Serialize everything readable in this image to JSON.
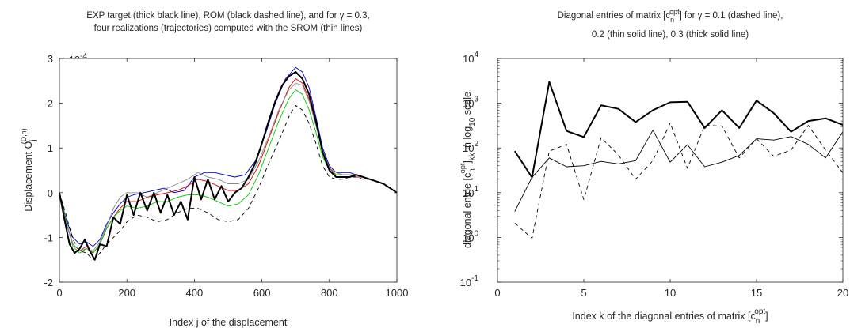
{
  "chart_data": [
    {
      "type": "line",
      "title_lines": [
        "EXP target (thick black line), ROM (black dashed line), and for γ = 0.3,",
        "four realizations (trajectories) computed with  the SROM (thin lines)"
      ],
      "xlabel": "Index j of the displacement",
      "ylabel_main": "Displacement O",
      "ylabel_sub": "j",
      "ylabel_sup": "(D,n)",
      "y_exponent_label": "×10",
      "y_exponent_value": "-4",
      "xlim": [
        0,
        1000
      ],
      "ylim": [
        -2,
        3
      ],
      "xticks": [
        "0",
        "200",
        "400",
        "600",
        "800",
        "1000"
      ],
      "yticks": [
        "-2",
        "-1",
        "0",
        "1",
        "2",
        "3"
      ],
      "series": [
        {
          "style": "thick",
          "color": "#000000",
          "x": [
            0,
            15,
            30,
            45,
            60,
            75,
            90,
            105,
            120,
            140,
            160,
            180,
            200,
            220,
            240,
            260,
            280,
            300,
            320,
            340,
            360,
            380,
            400,
            420,
            440,
            460,
            480,
            500,
            520,
            540,
            560,
            580,
            600,
            620,
            640,
            660,
            680,
            700,
            720,
            740,
            760,
            780,
            800,
            820,
            840,
            860,
            880,
            900,
            920,
            940,
            960,
            980,
            1000
          ],
          "y": [
            0,
            -0.6,
            -1.15,
            -1.35,
            -1.25,
            -1.05,
            -1.3,
            -1.5,
            -1.15,
            -1.2,
            -0.55,
            -0.7,
            -0.05,
            -0.5,
            0.0,
            -0.4,
            0.0,
            -0.45,
            -0.05,
            -0.5,
            -0.2,
            -0.6,
            0.35,
            -0.15,
            0.3,
            -0.15,
            0.15,
            -0.2,
            0.0,
            0.1,
            0.35,
            0.65,
            1.1,
            1.6,
            2.05,
            2.4,
            2.6,
            2.7,
            2.55,
            2.2,
            1.6,
            0.9,
            0.5,
            0.35,
            0.35,
            0.35,
            0.4,
            0.35,
            0.3,
            0.25,
            0.2,
            0.1,
            0.0
          ]
        },
        {
          "style": "dashed",
          "color": "#000000",
          "x": [
            0,
            20,
            40,
            60,
            80,
            100,
            120,
            140,
            160,
            180,
            200,
            230,
            260,
            290,
            320,
            350,
            380,
            410,
            440,
            470,
            500,
            530,
            560,
            590,
            620,
            650,
            680,
            700,
            720,
            740,
            760,
            780,
            800,
            820,
            840,
            860,
            880,
            900,
            920,
            940,
            960,
            980,
            1000
          ],
          "y": [
            0,
            -0.5,
            -1.05,
            -1.3,
            -1.35,
            -1.5,
            -1.35,
            -1.15,
            -1.0,
            -0.85,
            -0.65,
            -0.5,
            -0.55,
            -0.65,
            -0.6,
            -0.45,
            -0.35,
            -0.35,
            -0.45,
            -0.6,
            -0.65,
            -0.6,
            -0.35,
            0.1,
            0.65,
            1.15,
            1.7,
            1.95,
            1.85,
            1.55,
            1.1,
            0.6,
            0.35,
            0.3,
            0.3,
            0.35,
            0.35,
            0.3,
            0.3,
            0.25,
            0.2,
            0.1,
            0.0
          ]
        },
        {
          "style": "thin",
          "color": "#0000cc",
          "x": [
            0,
            20,
            40,
            60,
            80,
            100,
            120,
            140,
            160,
            180,
            200,
            220,
            250,
            280,
            310,
            340,
            370,
            400,
            430,
            460,
            490,
            520,
            550,
            580,
            610,
            640,
            670,
            700,
            720,
            740,
            760,
            780,
            800,
            820,
            840,
            860,
            880,
            900,
            920,
            940,
            960,
            980,
            1000
          ],
          "y": [
            0,
            -0.6,
            -1.0,
            -1.15,
            -1.1,
            -1.2,
            -1.05,
            -0.7,
            -0.45,
            -0.25,
            -0.1,
            -0.05,
            0.0,
            0.05,
            0.1,
            0.0,
            0.05,
            0.35,
            0.45,
            0.45,
            0.4,
            0.35,
            0.4,
            0.7,
            1.3,
            2.0,
            2.55,
            2.8,
            2.7,
            2.35,
            1.7,
            1.0,
            0.6,
            0.45,
            0.45,
            0.45,
            0.4,
            0.35,
            0.3,
            0.25,
            0.2,
            0.1,
            0.0
          ]
        },
        {
          "style": "thin",
          "color": "#cc0000",
          "x": [
            0,
            20,
            40,
            60,
            80,
            100,
            120,
            140,
            160,
            180,
            200,
            230,
            260,
            290,
            320,
            350,
            380,
            410,
            440,
            470,
            500,
            530,
            560,
            590,
            620,
            650,
            680,
            700,
            720,
            740,
            760,
            780,
            800,
            820,
            840,
            860,
            880,
            900,
            920,
            940,
            960,
            980,
            1000
          ],
          "y": [
            0,
            -0.65,
            -1.15,
            -1.3,
            -1.2,
            -1.35,
            -1.15,
            -0.8,
            -0.55,
            -0.35,
            -0.2,
            -0.2,
            -0.1,
            -0.05,
            0.0,
            0.05,
            0.15,
            0.3,
            0.25,
            0.15,
            0.05,
            0.05,
            0.2,
            0.6,
            1.2,
            1.8,
            2.35,
            2.55,
            2.45,
            2.1,
            1.55,
            0.95,
            0.55,
            0.4,
            0.4,
            0.4,
            0.35,
            0.35,
            0.3,
            0.25,
            0.2,
            0.1,
            0.0
          ]
        },
        {
          "style": "thin",
          "color": "#00c800",
          "x": [
            0,
            20,
            40,
            60,
            80,
            100,
            120,
            140,
            160,
            180,
            200,
            230,
            260,
            290,
            320,
            350,
            380,
            410,
            440,
            470,
            500,
            530,
            560,
            590,
            620,
            650,
            680,
            700,
            720,
            740,
            760,
            780,
            800,
            820,
            840,
            860,
            880,
            900,
            920,
            940,
            960,
            980,
            1000
          ],
          "y": [
            0,
            -0.65,
            -1.2,
            -1.35,
            -1.25,
            -1.35,
            -1.15,
            -0.8,
            -0.55,
            -0.4,
            -0.3,
            -0.35,
            -0.3,
            -0.2,
            -0.2,
            -0.1,
            -0.05,
            -0.05,
            -0.1,
            -0.2,
            -0.3,
            -0.25,
            -0.05,
            0.4,
            1.0,
            1.6,
            2.1,
            2.3,
            2.2,
            1.85,
            1.35,
            0.8,
            0.5,
            0.4,
            0.4,
            0.4,
            0.4,
            0.35,
            0.3,
            0.25,
            0.2,
            0.1,
            0.0
          ]
        },
        {
          "style": "thin",
          "color": "#888888",
          "x": [
            0,
            20,
            40,
            60,
            80,
            100,
            120,
            140,
            160,
            180,
            200,
            230,
            260,
            290,
            320,
            350,
            380,
            410,
            440,
            470,
            500,
            530,
            560,
            590,
            620,
            650,
            680,
            700,
            720,
            740,
            760,
            780,
            800,
            820,
            840,
            860,
            880,
            900,
            920,
            940,
            960,
            980,
            1000
          ],
          "y": [
            0,
            -0.7,
            -1.15,
            -1.3,
            -1.25,
            -1.3,
            -1.1,
            -0.75,
            -0.35,
            -0.1,
            0.0,
            0.0,
            -0.1,
            0.0,
            0.1,
            0.2,
            0.3,
            0.45,
            0.35,
            0.3,
            0.2,
            0.2,
            0.3,
            0.7,
            1.25,
            1.85,
            2.3,
            2.45,
            2.4,
            2.05,
            1.5,
            0.95,
            0.55,
            0.45,
            0.4,
            0.4,
            0.4,
            0.35,
            0.3,
            0.25,
            0.2,
            0.1,
            0.0
          ]
        }
      ]
    },
    {
      "type": "line",
      "title_line1_pre": "Diagonal entries of matrix [c",
      "title_line1_sub": "n",
      "title_line1_sup": "opt",
      "title_line1_post": "] for γ = 0.1 (dashed line),",
      "title_line2": "0.2 (thin solid line), 0.3 (thick solid line)",
      "xlabel_pre": "Index k of the diagonal entries of  matrix [c",
      "xlabel_sub": "n",
      "xlabel_sup": "opt",
      "xlabel_post": "]",
      "ylabel_pre": "diagonal entrie  [c",
      "ylabel_sub1": "n",
      "ylabel_sup1": "opt",
      "ylabel_mid": "]",
      "ylabel_sub2": "kk",
      "ylabel_mid2": " in log",
      "ylabel_sub3": "10",
      "ylabel_post": " scale",
      "yscale": "log",
      "xlim": [
        0,
        20
      ],
      "ylim": [
        0.1,
        10000
      ],
      "xticks": [
        "0",
        "5",
        "10",
        "15",
        "20"
      ],
      "ytick_base": "10",
      "ytick_exponents": [
        "-1",
        "0",
        "1",
        "2",
        "3",
        "4"
      ],
      "series": [
        {
          "style": "thick",
          "color": "#000000",
          "x": [
            1,
            2,
            3,
            4,
            5,
            6,
            7,
            8,
            9,
            10,
            11,
            12,
            13,
            14,
            15,
            16,
            17,
            18,
            19,
            20
          ],
          "y": [
            85,
            22,
            3000,
            240,
            175,
            900,
            750,
            380,
            700,
            1050,
            1080,
            280,
            700,
            280,
            1150,
            600,
            230,
            400,
            460,
            330
          ]
        },
        {
          "style": "thin",
          "color": "#000000",
          "x": [
            1,
            2,
            3,
            4,
            5,
            6,
            7,
            8,
            9,
            10,
            11,
            12,
            13,
            14,
            15,
            16,
            17,
            18,
            19,
            20
          ],
          "y": [
            3.8,
            22,
            60,
            38,
            40,
            50,
            44,
            52,
            250,
            48,
            118,
            38,
            48,
            68,
            160,
            150,
            180,
            120,
            60,
            230
          ]
        },
        {
          "style": "dashed",
          "color": "#000000",
          "x": [
            1,
            2,
            3,
            4,
            5,
            6,
            7,
            8,
            9,
            10,
            11,
            12,
            13,
            14,
            15,
            16,
            17,
            18,
            19,
            20
          ],
          "y": [
            2.1,
            0.95,
            85,
            120,
            7,
            170,
            70,
            20,
            52,
            360,
            35,
            320,
            310,
            60,
            160,
            65,
            90,
            320,
            90,
            28
          ]
        }
      ]
    }
  ]
}
